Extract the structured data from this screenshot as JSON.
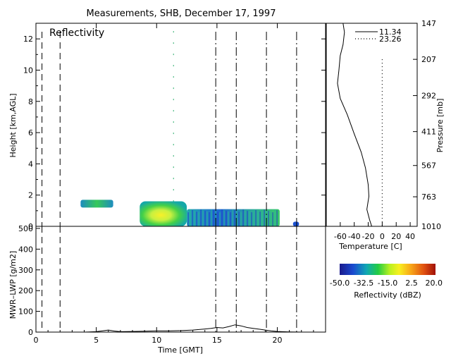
{
  "title": "Measurements, SHB, December 17, 1997",
  "refl_panel": {
    "label": "Reflectivity",
    "ylabel": "Height [km,AGL]",
    "yticks": [
      0,
      2,
      4,
      6,
      8,
      10,
      12
    ]
  },
  "lwp_panel": {
    "ylabel": "MWR–LWP [g/m2]",
    "yticks": [
      0,
      100,
      200,
      300,
      400,
      500
    ],
    "xlabel": "Time [GMT]",
    "xticks": [
      0,
      5,
      10,
      15,
      20
    ]
  },
  "sounding_panel": {
    "xlabel": "Temperature [C]",
    "xticks": [
      "-60",
      "-40",
      "-20",
      "0",
      "20",
      "40"
    ],
    "ylabel": "Pressure [mb]",
    "pressure_ticks": [
      "147",
      "207",
      "292",
      "411",
      "567",
      "763",
      "1010"
    ],
    "legend": [
      {
        "label": "11.34",
        "style": "solid"
      },
      {
        "label": "23.26",
        "style": "dotted"
      }
    ]
  },
  "colorbar": {
    "label": "Reflectivity (dBZ)",
    "ticks": [
      "-50.0",
      "-32.5",
      "-15.0",
      "2.5",
      "20.0"
    ]
  },
  "colors": {
    "low": "#1a1ab4",
    "mid": "#22cc44",
    "high_mid": "#f0f020",
    "high": "#b41a10"
  },
  "chart_data": [
    {
      "type": "heatmap",
      "title": "Reflectivity",
      "xlabel": "Time [GMT]",
      "ylabel": "Height [km,AGL]",
      "xlim": [
        0,
        24
      ],
      "ylim": [
        0,
        13
      ],
      "sounding_times": [
        0.5,
        2.0,
        14.9,
        16.6,
        19.1,
        21.6
      ],
      "echo_regions": [
        {
          "t_start": 3.7,
          "t_end": 6.4,
          "h_bottom": 1.2,
          "h_top": 1.7,
          "peak_dbz": -10
        },
        {
          "t_start": 8.6,
          "t_end": 12.5,
          "h_bottom": 0.0,
          "h_top": 1.6,
          "peak_dbz": 2
        },
        {
          "t_start": 12.5,
          "t_end": 20.2,
          "h_bottom": 0.0,
          "h_top": 1.1,
          "peak_dbz": -25
        },
        {
          "t_start": 21.3,
          "t_end": 21.8,
          "h_bottom": 0.0,
          "h_top": 0.3,
          "peak_dbz": -35
        }
      ],
      "streak": {
        "t": 11.4,
        "h_bottom": 1.6,
        "h_top": 12.5
      }
    },
    {
      "type": "line",
      "title": "",
      "xlabel": "Time [GMT]",
      "ylabel": "MWR–LWP [g/m2]",
      "xlim": [
        0,
        24
      ],
      "ylim": [
        0,
        510
      ],
      "x": [
        0,
        2,
        4,
        5,
        5.5,
        6,
        6.5,
        7,
        8,
        9,
        10,
        11,
        12,
        13,
        14,
        14.5,
        15,
        15.5,
        16,
        16.5,
        17,
        17.5,
        18,
        18.5,
        19,
        19.5,
        20,
        21,
        22,
        23,
        24
      ],
      "y": [
        0,
        0,
        0,
        2,
        6,
        10,
        5,
        2,
        3,
        4,
        6,
        6,
        7,
        10,
        15,
        18,
        22,
        20,
        27,
        35,
        30,
        22,
        18,
        14,
        10,
        6,
        3,
        1,
        0,
        0,
        0
      ]
    },
    {
      "type": "line",
      "title": "",
      "xlabel": "Temperature [C]",
      "ylabel": "Pressure [mb]",
      "xlim": [
        -80,
        50
      ],
      "series": [
        {
          "name": "11.34",
          "x": [
            -56,
            -54,
            -56,
            -60,
            -62,
            -64,
            -60,
            -50,
            -40,
            -30,
            -24,
            -20,
            -19,
            -22,
            -18,
            -15
          ],
          "y": [
            147,
            160,
            180,
            200,
            230,
            260,
            300,
            350,
            420,
            500,
            580,
            680,
            760,
            860,
            950,
            1010
          ]
        },
        {
          "name": "23.26",
          "x": [
            0,
            0
          ],
          "y": [
            207,
            1010
          ]
        }
      ]
    }
  ]
}
